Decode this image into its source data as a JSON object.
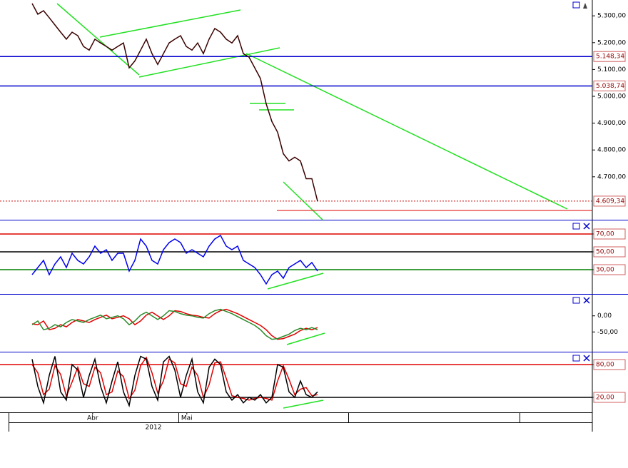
{
  "chart_data": [
    {
      "type": "line",
      "x": [
        0,
        1,
        2,
        3,
        4,
        5,
        6,
        7,
        8,
        9,
        10,
        11,
        12,
        13,
        14,
        15,
        16,
        17,
        18,
        19,
        20,
        21,
        22,
        23,
        24,
        25,
        26,
        27,
        28,
        29,
        30,
        31,
        32,
        33,
        34,
        35,
        36,
        37,
        38,
        39,
        40,
        41,
        42,
        43,
        44,
        45,
        46,
        47,
        48,
        49,
        50
      ],
      "xlim": [
        -5.625,
        98.125
      ],
      "xticks": [
        {
          "value": 10.6,
          "label": "Abr"
        },
        {
          "value": 27.1,
          "label": "Mai"
        }
      ],
      "xticks2": [
        {
          "value": 21.25,
          "label": "2012"
        }
      ],
      "ylim": [
        4540,
        5359
      ],
      "yticks": [
        {
          "value": 5300,
          "label": "5.300,00"
        },
        {
          "value": 5200,
          "label": "5.200,00"
        },
        {
          "value": 5100,
          "label": "5.100,00"
        },
        {
          "value": 5000,
          "label": "5.000,00"
        },
        {
          "value": 4900,
          "label": "4.900,00"
        },
        {
          "value": 4800,
          "label": "4.800,00"
        },
        {
          "value": 4700,
          "label": "4.700,00"
        }
      ],
      "hlines": [
        {
          "value": 5148.34,
          "label": "5.148,34",
          "color": "#0000cc"
        },
        {
          "value": 5038.74,
          "label": "5.038,74",
          "color": "#0000cc"
        },
        {
          "value": 4609.34,
          "label": "4.609,34",
          "color": "#cc0000",
          "dash": true
        }
      ],
      "series": [
        {
          "color": "#3a0000",
          "values": [
            5346,
            5306,
            5319,
            5293,
            5266,
            5239,
            5213,
            5239,
            5226,
            5186,
            5172,
            5213,
            5199,
            5186,
            5172,
            5186,
            5199,
            5106,
            5132,
            5172,
            5213,
            5159,
            5119,
            5159,
            5199,
            5213,
            5226,
            5186,
            5172,
            5199,
            5159,
            5213,
            5253,
            5239,
            5213,
            5199,
            5226,
            5159,
            5146,
            5106,
            5066,
            4972,
            4906,
            4866,
            4786,
            4759,
            4773,
            4759,
            4693,
            4693,
            4609
          ]
        }
      ]
    },
    {
      "type": "line",
      "ylim": [
        2.8,
        83.6
      ],
      "yticks": [
        {
          "value": 70,
          "label": "70,00"
        },
        {
          "value": 50,
          "label": "50,00"
        },
        {
          "value": 30,
          "label": "30,00"
        }
      ],
      "level_colors": [
        "#e00000",
        "#000000",
        "#008000"
      ],
      "series": [
        {
          "color": "#0000ee",
          "values": [
            24.4,
            32.4,
            40.4,
            24.4,
            36.4,
            44.4,
            32.4,
            48.4,
            40.4,
            36.4,
            44.4,
            56.4,
            48.4,
            52.4,
            40.4,
            48.4,
            48.4,
            28.4,
            40.4,
            64.4,
            56.4,
            40.4,
            36.4,
            52.4,
            60.4,
            64.4,
            60.4,
            48.4,
            52.4,
            48.4,
            44.4,
            56.4,
            64.4,
            68.4,
            56.4,
            52.4,
            56.4,
            40.4,
            36.4,
            32.4,
            24.4,
            14,
            24.4,
            28.4,
            20.4,
            32.4,
            36.4,
            40.4,
            32.4,
            38,
            28.4
          ]
        }
      ]
    },
    {
      "type": "line",
      "ylim": [
        -109.1,
        61.4
      ],
      "yticks": [
        {
          "value": 0,
          "label": "0,00"
        },
        {
          "value": -50,
          "label": "-50,00"
        }
      ],
      "series": [
        {
          "color": "#e00000",
          "values": [
            -25,
            -27.3,
            -15.9,
            -43.2,
            -38.6,
            -27.3,
            -34.1,
            -20.5,
            -11.4,
            -15.9,
            -20.5,
            -11.4,
            -4.5,
            2.3,
            -9.1,
            -4.5,
            0,
            -9.1,
            -27.3,
            -15.9,
            2.3,
            11.4,
            0,
            -11.4,
            0,
            15.9,
            13.6,
            6.8,
            2.3,
            0,
            -4.5,
            -6.8,
            6.8,
            15.9,
            20.5,
            13.6,
            6.8,
            -2.3,
            -11.4,
            -20.5,
            -29.5,
            -43.2,
            -61.4,
            -72.7,
            -70.5,
            -63.6,
            -56.8,
            -45.5,
            -38.6,
            -43.2,
            -36.4
          ]
        },
        {
          "color": "#2a8a2a",
          "values": [
            -27.3,
            -15.9,
            -43.2,
            -38.6,
            -27.3,
            -34.1,
            -20.5,
            -11.4,
            -15.9,
            -20.5,
            -11.4,
            -4.5,
            2.3,
            -9.1,
            -4.5,
            0,
            -9.1,
            -27.3,
            -15.9,
            2.3,
            11.4,
            0,
            -11.4,
            0,
            15.9,
            13.6,
            6.8,
            2.3,
            0,
            -4.5,
            -6.8,
            6.8,
            15.9,
            20.5,
            13.6,
            6.8,
            -2.3,
            -11.4,
            -20.5,
            -29.5,
            -43.2,
            -61.4,
            -72.7,
            -70.5,
            -63.6,
            -56.8,
            -45.5,
            -38.6,
            -43.2,
            -36.4,
            -43.2
          ]
        }
      ]
    },
    {
      "type": "line",
      "ylim": [
        -7.4,
        100.9
      ],
      "yticks": [
        {
          "value": 80,
          "label": "80,00"
        },
        {
          "value": 20,
          "label": "20,00"
        }
      ],
      "level_colors": [
        "#e00000",
        "#000000"
      ],
      "series": [
        {
          "color": "#e00000",
          "values": [
            80,
            65,
            25,
            35,
            78,
            62,
            22,
            48,
            75,
            45,
            40,
            75,
            65,
            25,
            30,
            68,
            58,
            18,
            33,
            78,
            93,
            65,
            28,
            50,
            90,
            83,
            45,
            40,
            75,
            60,
            20,
            43,
            83,
            85,
            55,
            23,
            20,
            18,
            15,
            18,
            20,
            18,
            15,
            50,
            78,
            53,
            25,
            35,
            38,
            23,
            25
          ]
        },
        {
          "color": "#000000",
          "values": [
            90,
            40,
            10,
            60,
            95,
            30,
            15,
            80,
            70,
            20,
            60,
            90,
            40,
            10,
            50,
            85,
            30,
            5,
            60,
            95,
            90,
            40,
            15,
            85,
            95,
            70,
            20,
            60,
            90,
            30,
            10,
            75,
            90,
            80,
            30,
            15,
            25,
            10,
            20,
            15,
            25,
            10,
            20,
            80,
            75,
            30,
            20,
            50,
            25,
            20,
            30
          ]
        }
      ]
    }
  ]
}
